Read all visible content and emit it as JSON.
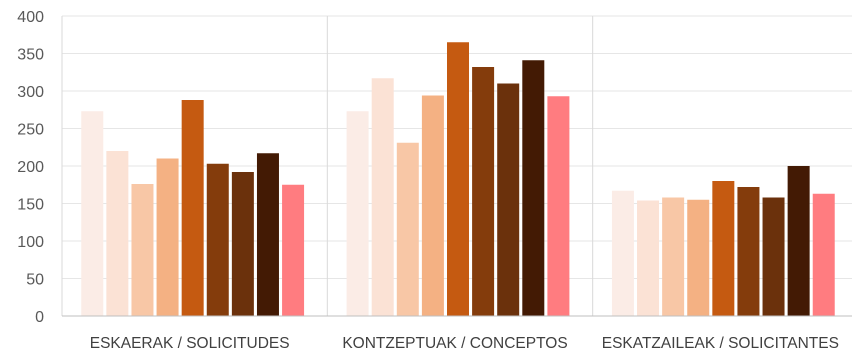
{
  "chart_data": {
    "type": "bar",
    "title": "",
    "xlabel": "",
    "ylabel": "",
    "ylim": [
      0,
      400
    ],
    "yticks": [
      0,
      50,
      100,
      150,
      200,
      250,
      300,
      350,
      400
    ],
    "grid": true,
    "legend": "none",
    "categories": [
      "ESKAERAK / SOLICITUDES",
      "KONTZEPTUAK / CONCEPTOS",
      "ESKATZAILEAK / SOLICITANTES"
    ],
    "series": [
      {
        "color": "#fbece6",
        "values": [
          273,
          273,
          167
        ]
      },
      {
        "color": "#fbe2d5",
        "values": [
          220,
          317,
          154
        ]
      },
      {
        "color": "#f8c7a6",
        "values": [
          176,
          231,
          158
        ]
      },
      {
        "color": "#f4b183",
        "values": [
          210,
          294,
          155
        ]
      },
      {
        "color": "#c55a11",
        "values": [
          288,
          365,
          180
        ]
      },
      {
        "color": "#843c0c",
        "values": [
          203,
          332,
          172
        ]
      },
      {
        "color": "#6b310c",
        "values": [
          192,
          310,
          158
        ]
      },
      {
        "color": "#431a04",
        "values": [
          217,
          341,
          200
        ]
      },
      {
        "color": "#ff7c80",
        "values": [
          175,
          293,
          163
        ]
      }
    ]
  }
}
